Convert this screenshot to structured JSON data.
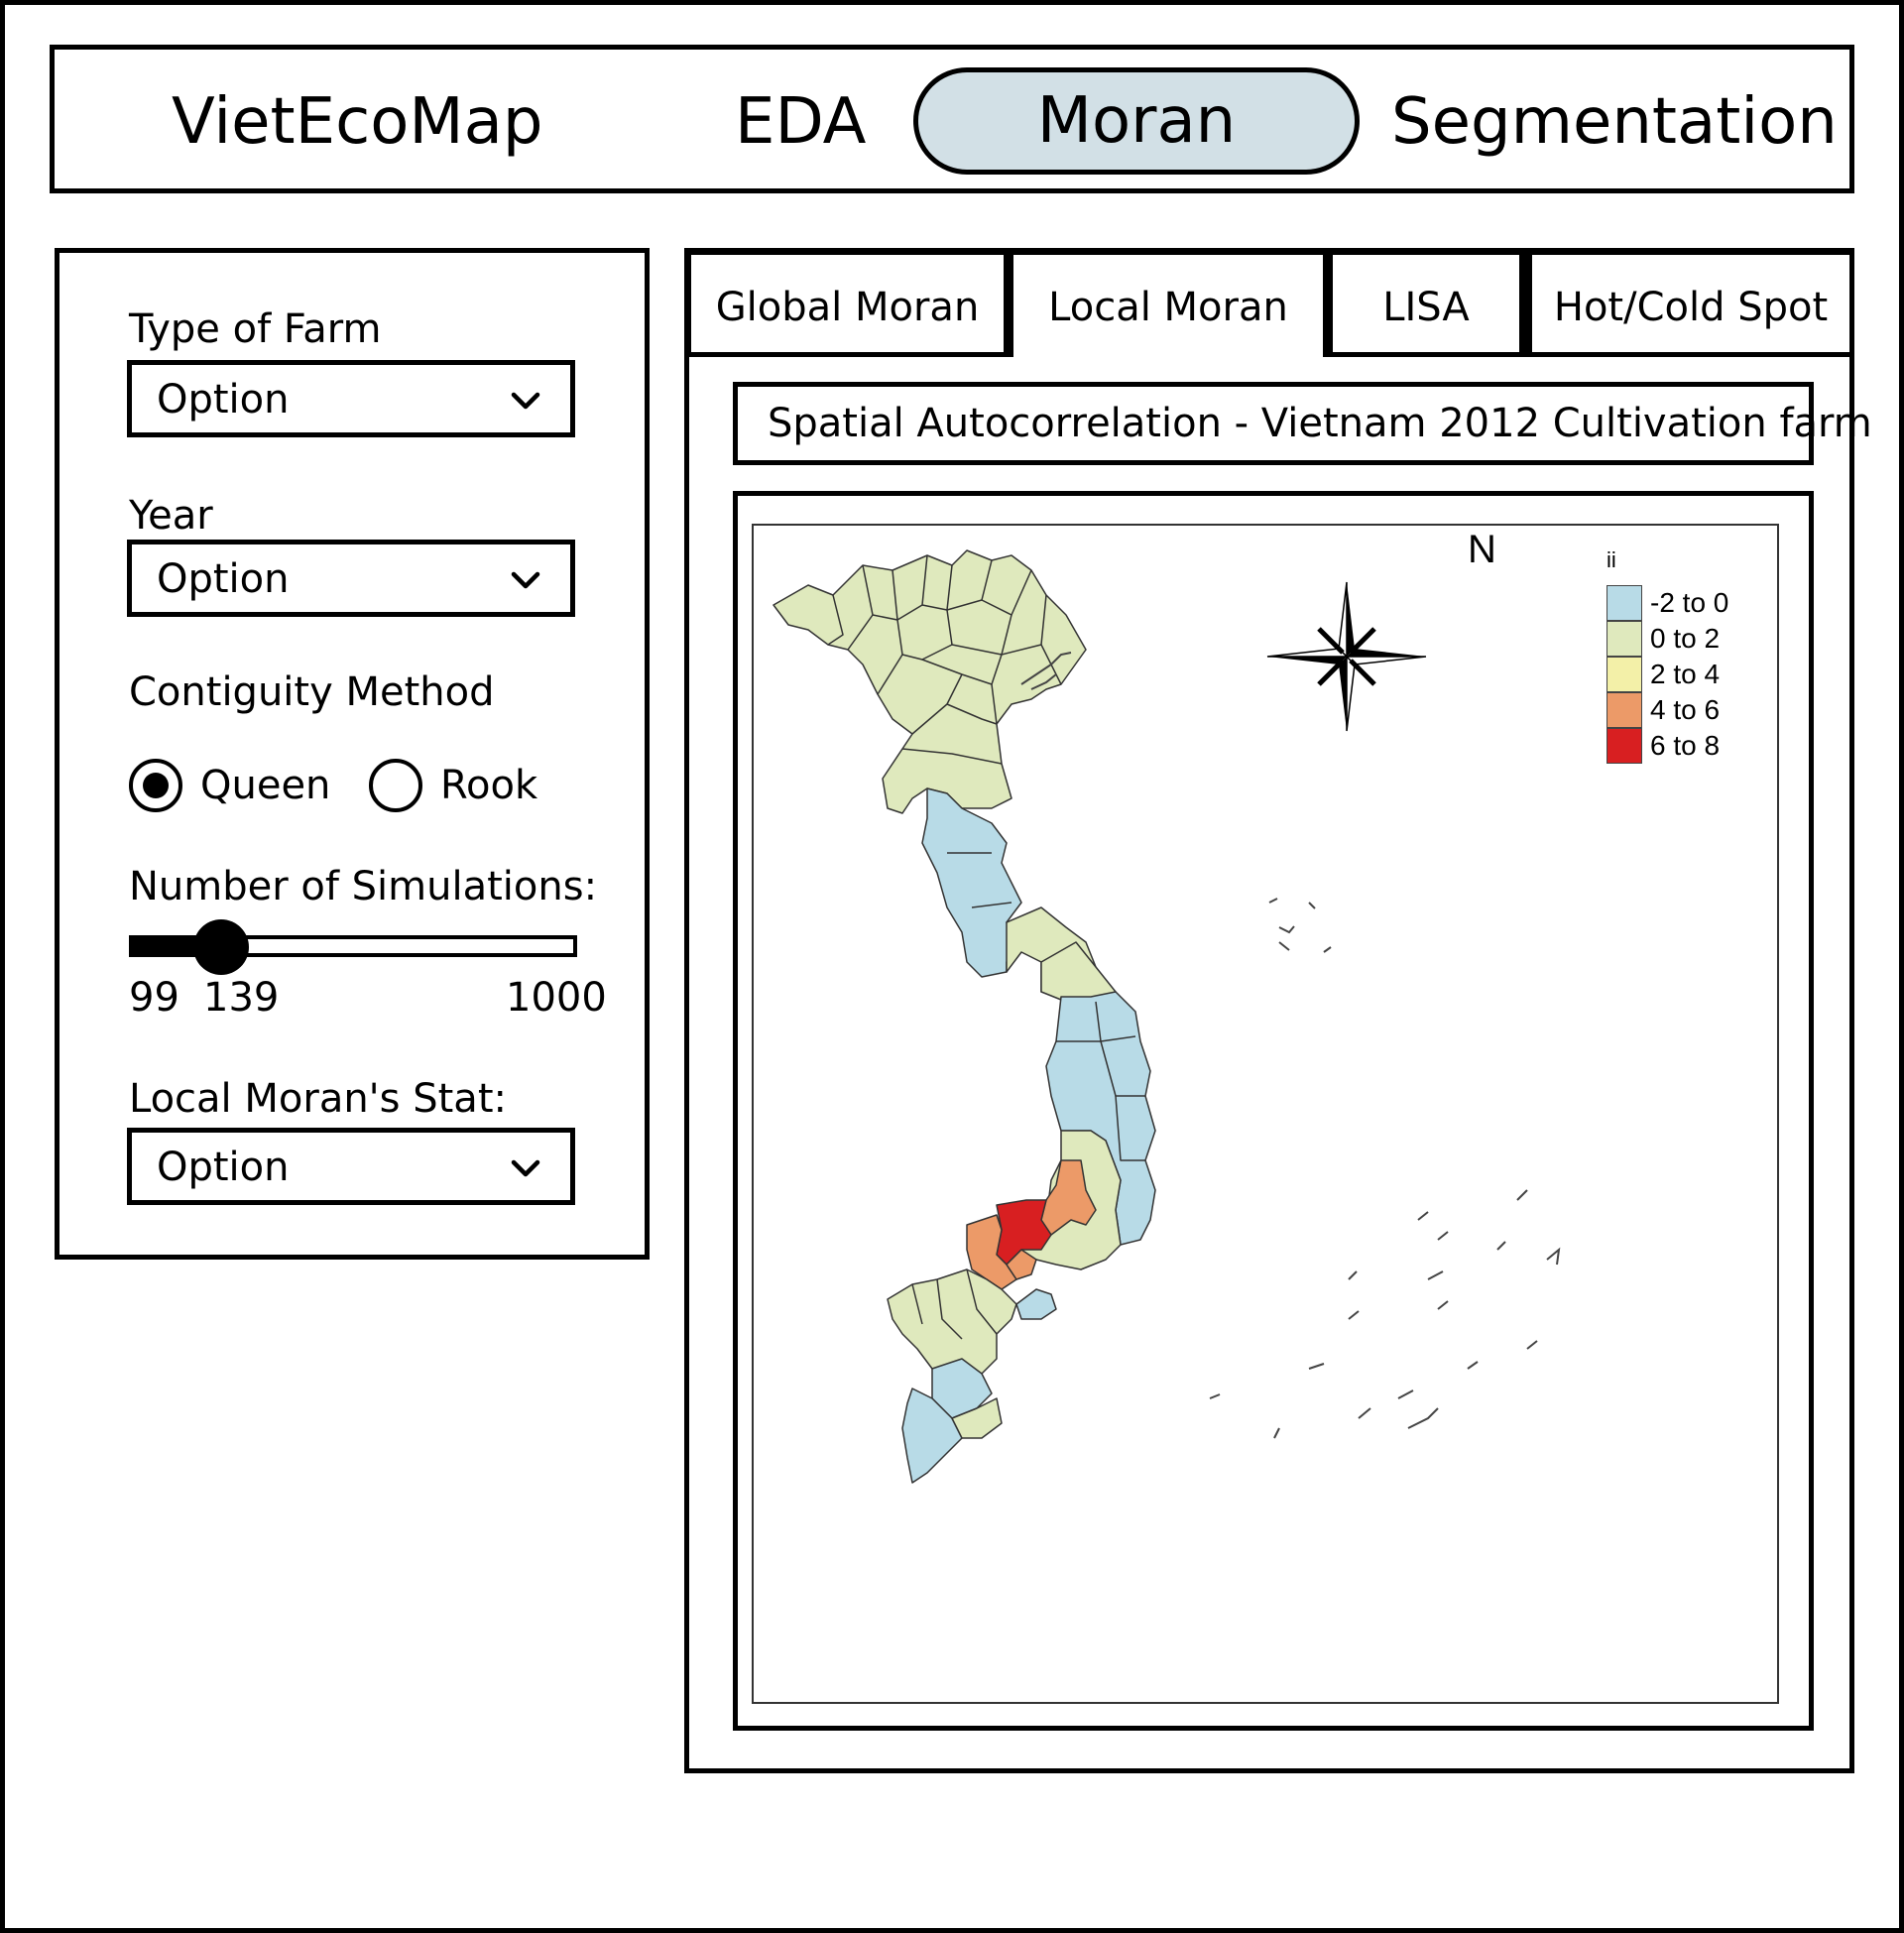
{
  "nav": {
    "brand": "VietEcoMap",
    "items": [
      {
        "label": "EDA",
        "active": false
      },
      {
        "label": "Moran",
        "active": true
      },
      {
        "label": "Segmentation",
        "active": false
      }
    ],
    "active_color": "#d2e0e6"
  },
  "sidebar": {
    "farm_type": {
      "label": "Type of Farm",
      "value": "Option"
    },
    "year": {
      "label": "Year",
      "value": "Option"
    },
    "contiguity": {
      "label": "Contiguity Method",
      "options": [
        {
          "label": "Queen",
          "selected": true
        },
        {
          "label": "Rook",
          "selected": false
        }
      ]
    },
    "simulations": {
      "label": "Number of Simulations:",
      "min": "99",
      "value": "139",
      "max": "1000",
      "fraction": 0.2
    },
    "local_stat": {
      "label": "Local Moran's Stat:",
      "value": "Option"
    }
  },
  "tabs": [
    {
      "label": "Global Moran",
      "active": false
    },
    {
      "label": "Local Moran",
      "active": true
    },
    {
      "label": "LISA",
      "active": false
    },
    {
      "label": "Hot/Cold Spot",
      "active": false
    }
  ],
  "map": {
    "title": "Spatial Autocorrelation - Vietnam 2012 Cultivation farm",
    "north_label": "N",
    "legend": {
      "title": "ii",
      "items": [
        {
          "label": "-2 to 0",
          "color": "#b8dbe7"
        },
        {
          "label": "0 to 2",
          "color": "#dfe9bd"
        },
        {
          "label": "2 to 4",
          "color": "#f3f0a8"
        },
        {
          "label": "4 to 6",
          "color": "#ec9a68"
        },
        {
          "label": "6 to 8",
          "color": "#d81f21"
        }
      ]
    }
  }
}
